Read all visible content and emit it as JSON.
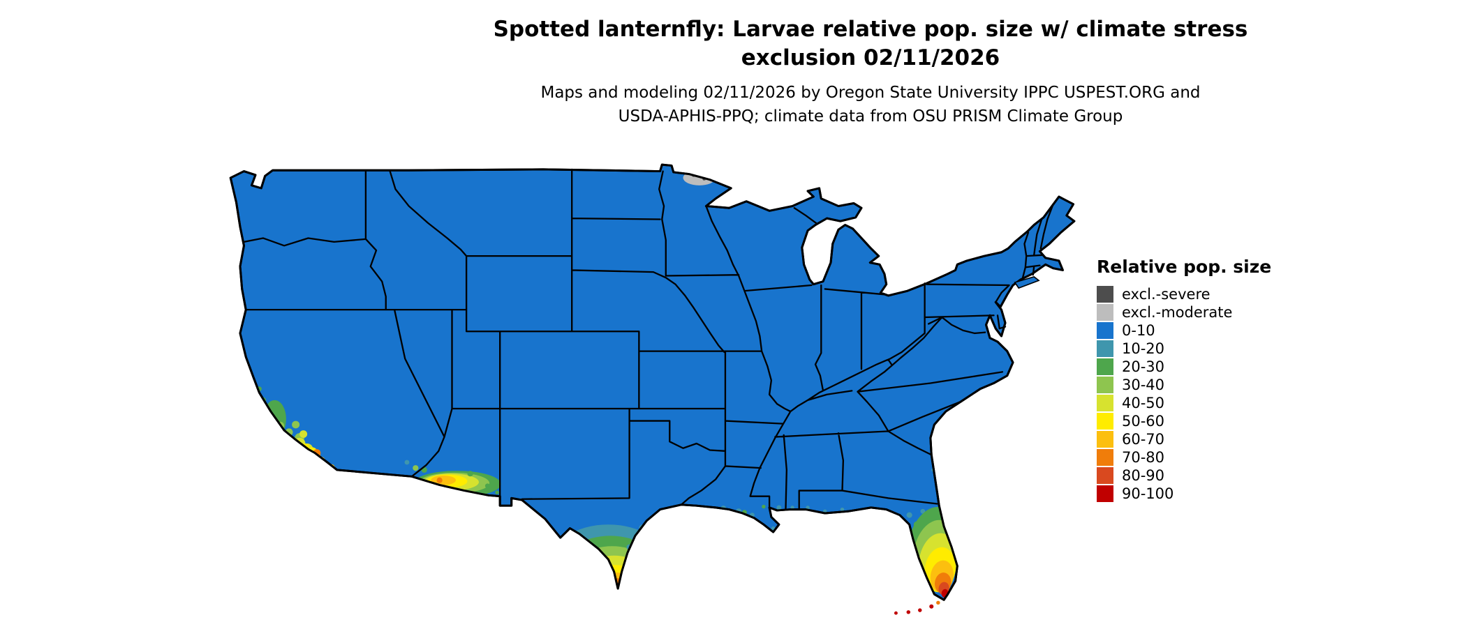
{
  "header": {
    "title_line1": "Spotted lanternfly: Larvae relative pop. size w/ climate stress",
    "title_line2": "exclusion 02/11/2026",
    "subtitle_line1": "Maps and modeling 02/11/2026 by Oregon State University IPPC USPEST.ORG and",
    "subtitle_line2": "USDA-APHIS-PPQ; climate data from OSU PRISM Climate Group"
  },
  "legend": {
    "title": "Relative pop. size",
    "items": [
      {
        "label": "excl.-severe",
        "color": "#4d4d4d"
      },
      {
        "label": "excl.-moderate",
        "color": "#bdbdbd"
      },
      {
        "label": "0-10",
        "color": "#1874cd"
      },
      {
        "label": "10-20",
        "color": "#3f96ad"
      },
      {
        "label": "20-30",
        "color": "#4ea64c"
      },
      {
        "label": "30-40",
        "color": "#8ec54f"
      },
      {
        "label": "40-50",
        "color": "#d7e22f"
      },
      {
        "label": "50-60",
        "color": "#ffec00"
      },
      {
        "label": "60-70",
        "color": "#fcbf0f"
      },
      {
        "label": "70-80",
        "color": "#f07d0a"
      },
      {
        "label": "80-90",
        "color": "#d9491f"
      },
      {
        "label": "90-100",
        "color": "#c00000"
      }
    ]
  },
  "map": {
    "background": "#ffffff",
    "state_border_color": "#000000",
    "base_fill_class": "0-10"
  }
}
